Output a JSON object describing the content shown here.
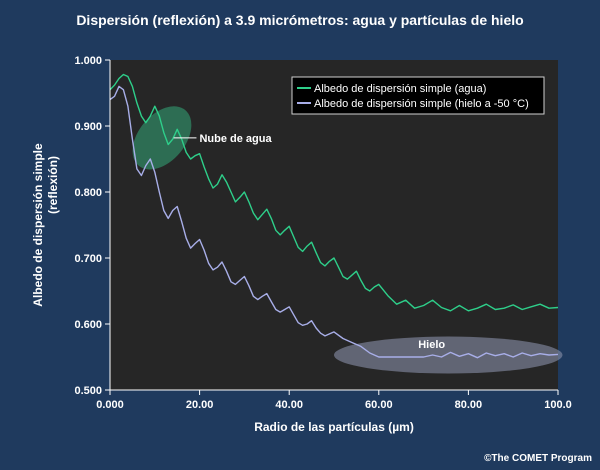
{
  "page": {
    "title": "Dispersión (reflexión) a 3.9 micrómetros: agua y partículas de hielo",
    "credit": "©The COMET Program"
  },
  "colors": {
    "background": "#1f3a5e",
    "plot_area": "#262626",
    "water_series": "#2ecf8a",
    "ice_series": "#a8aee8",
    "water_ellipse": "#2f7a5c",
    "ice_ellipse": "#8890a8"
  },
  "chart_data": {
    "type": "line",
    "xlabel": "Radio de las partículas (µm)",
    "ylabel_line1": "Albedo de dispersión simple",
    "ylabel_line2": "(reflexión)",
    "xlim": [
      0,
      100
    ],
    "ylim": [
      0.5,
      1.0
    ],
    "xticks": [
      0,
      20,
      40,
      60,
      80,
      100
    ],
    "xtick_labels": [
      "0.000",
      "20.00",
      "40.00",
      "60.00",
      "80.00",
      "100.0"
    ],
    "yticks": [
      0.5,
      0.6,
      0.7,
      0.8,
      0.9,
      1.0
    ],
    "ytick_labels": [
      "0.500",
      "0.600",
      "0.700",
      "0.800",
      "0.900",
      "1.000"
    ],
    "grid": false,
    "legend_position": "top-right",
    "series": [
      {
        "name": "Albedo de dispersión simple (agua)",
        "color_key": "water_series",
        "x": [
          0,
          1,
          2,
          3,
          4,
          5,
          6,
          7,
          8,
          9,
          10,
          11,
          12,
          13,
          14,
          15,
          16,
          17,
          18,
          19,
          20,
          21,
          22,
          23,
          24,
          25,
          26,
          27,
          28,
          29,
          30,
          31,
          32,
          33,
          34,
          35,
          36,
          37,
          38,
          39,
          40,
          41,
          42,
          43,
          44,
          45,
          46,
          47,
          48,
          49,
          50,
          51,
          52,
          53,
          54,
          55,
          56,
          57,
          58,
          59,
          60,
          62,
          64,
          66,
          68,
          70,
          72,
          74,
          76,
          78,
          80,
          82,
          84,
          86,
          88,
          90,
          92,
          94,
          96,
          98,
          100
        ],
        "values": [
          0.955,
          0.962,
          0.972,
          0.978,
          0.975,
          0.96,
          0.935,
          0.915,
          0.905,
          0.915,
          0.93,
          0.915,
          0.89,
          0.872,
          0.88,
          0.895,
          0.88,
          0.86,
          0.85,
          0.855,
          0.858,
          0.838,
          0.82,
          0.806,
          0.812,
          0.826,
          0.815,
          0.8,
          0.785,
          0.792,
          0.8,
          0.785,
          0.768,
          0.758,
          0.766,
          0.774,
          0.76,
          0.742,
          0.735,
          0.742,
          0.748,
          0.732,
          0.716,
          0.71,
          0.718,
          0.724,
          0.708,
          0.693,
          0.688,
          0.695,
          0.7,
          0.686,
          0.672,
          0.668,
          0.674,
          0.68,
          0.666,
          0.654,
          0.65,
          0.656,
          0.66,
          0.643,
          0.63,
          0.636,
          0.624,
          0.628,
          0.636,
          0.625,
          0.62,
          0.628,
          0.62,
          0.624,
          0.63,
          0.622,
          0.624,
          0.629,
          0.622,
          0.626,
          0.63,
          0.624,
          0.625
        ]
      },
      {
        "name": "Albedo de dispersión simple (hielo a -50 °C)",
        "color_key": "ice_series",
        "x": [
          0,
          1,
          2,
          3,
          4,
          5,
          6,
          7,
          8,
          9,
          10,
          11,
          12,
          13,
          14,
          15,
          16,
          17,
          18,
          19,
          20,
          21,
          22,
          23,
          24,
          25,
          26,
          27,
          28,
          29,
          30,
          31,
          32,
          33,
          34,
          35,
          36,
          37,
          38,
          39,
          40,
          41,
          42,
          43,
          44,
          45,
          46,
          47,
          48,
          49,
          50,
          52,
          54,
          56,
          58,
          60,
          62,
          64,
          66,
          68,
          70,
          72,
          74,
          76,
          78,
          80,
          82,
          84,
          86,
          88,
          90,
          92,
          94,
          96,
          98,
          100
        ],
        "values": [
          0.94,
          0.945,
          0.96,
          0.955,
          0.93,
          0.88,
          0.835,
          0.825,
          0.84,
          0.85,
          0.83,
          0.8,
          0.772,
          0.76,
          0.772,
          0.778,
          0.755,
          0.73,
          0.715,
          0.722,
          0.728,
          0.712,
          0.692,
          0.682,
          0.686,
          0.694,
          0.68,
          0.664,
          0.66,
          0.666,
          0.672,
          0.658,
          0.642,
          0.637,
          0.642,
          0.646,
          0.634,
          0.622,
          0.618,
          0.622,
          0.626,
          0.614,
          0.602,
          0.598,
          0.6,
          0.605,
          0.594,
          0.586,
          0.582,
          0.585,
          0.588,
          0.578,
          0.572,
          0.566,
          0.556,
          0.55,
          0.55,
          0.55,
          0.55,
          0.55,
          0.55,
          0.553,
          0.55,
          0.557,
          0.551,
          0.555,
          0.549,
          0.556,
          0.552,
          0.555,
          0.55,
          0.556,
          0.552,
          0.555,
          0.553,
          0.554
        ]
      }
    ],
    "annotations": {
      "water_cloud": {
        "label": "Nube de agua",
        "ellipse": {
          "cx": 11.6,
          "cy": 0.882,
          "rx_units": 5.2,
          "ry_units": 0.055,
          "rotate": 40
        },
        "leader_from": [
          14.2,
          0.882
        ],
        "leader_to": [
          19.3,
          0.882
        ]
      },
      "ice": {
        "label": "Hielo",
        "ellipse": {
          "cx": 75.5,
          "cy": 0.553,
          "rx_units": 25.5,
          "ry_units": 0.028,
          "rotate": 0
        }
      }
    }
  }
}
